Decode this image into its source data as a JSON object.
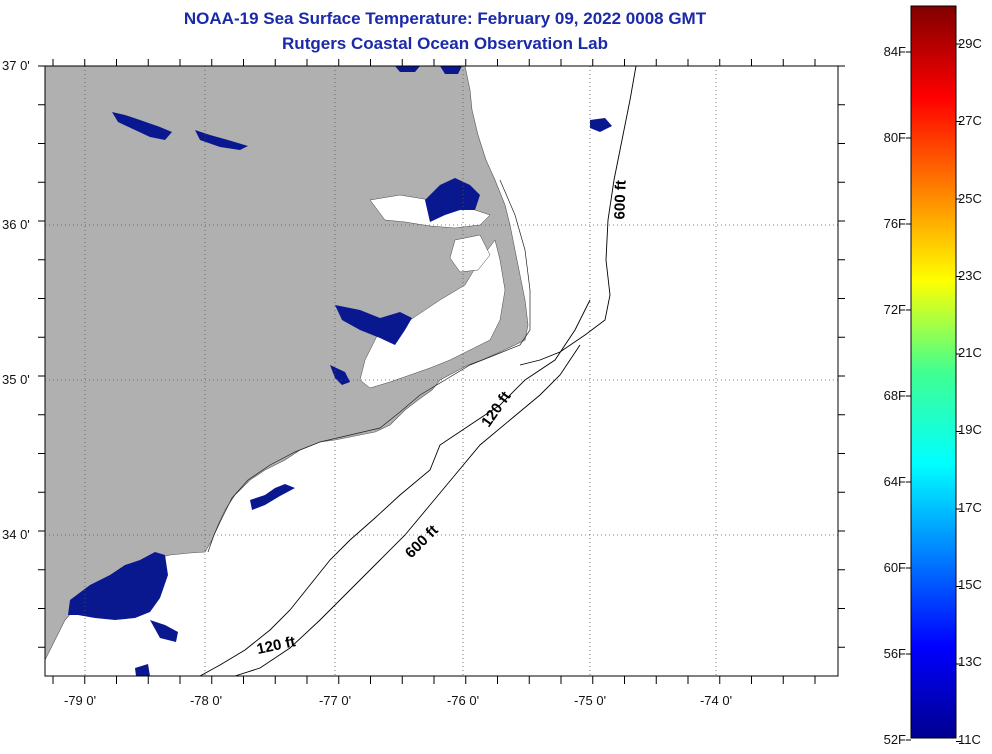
{
  "title": "NOAA-19 Sea Surface Temperature:  February 09, 2022 0008 GMT",
  "subtitle": "Rutgers Coastal Ocean Observation Lab",
  "map": {
    "lat_labels": [
      "37 0'",
      "36 0'",
      "35 0'",
      "34 0'"
    ],
    "lon_labels": [
      "-79 0'",
      "-78 0'",
      "-77 0'",
      "-76 0'",
      "-75 0'",
      "-74 0'"
    ],
    "contour_labels": [
      "600 ft",
      "120 ft",
      "600 ft",
      "120 ft"
    ],
    "land_color": "#b0b0b0",
    "water_color": "#ffffff",
    "cold_water_color": "#0a1890"
  },
  "colorbar": {
    "f_labels": [
      "84F",
      "80F",
      "76F",
      "72F",
      "68F",
      "64F",
      "60F",
      "56F",
      "52F"
    ],
    "c_labels": [
      "29C",
      "27C",
      "25C",
      "23C",
      "21C",
      "19C",
      "17C",
      "15C",
      "13C",
      "11C"
    ]
  }
}
